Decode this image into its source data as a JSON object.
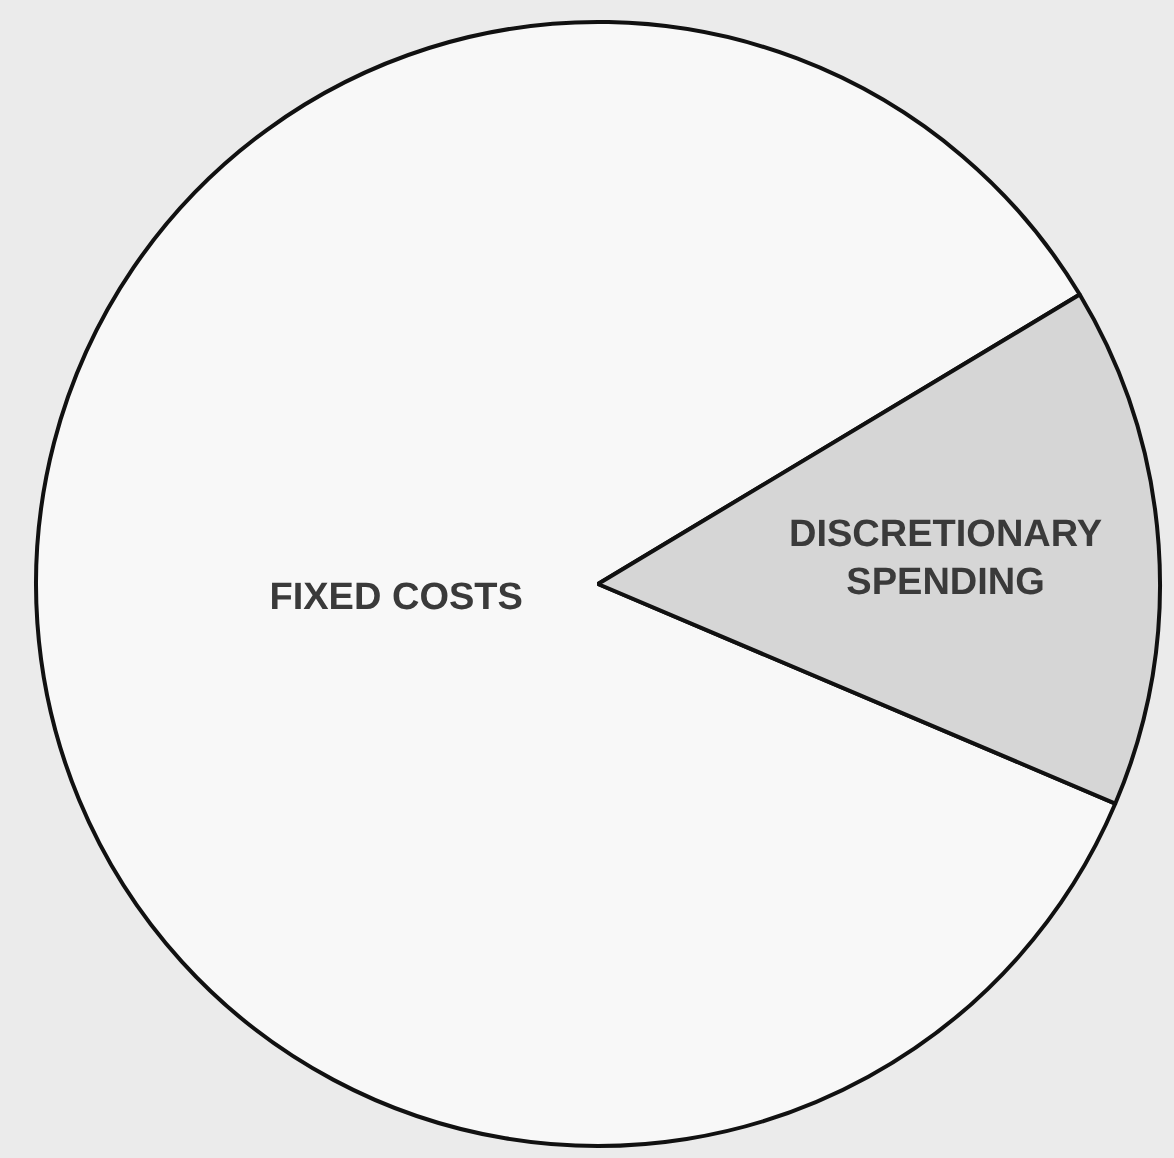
{
  "chart_data": {
    "type": "pie",
    "categories": [
      "FIXED COSTS",
      "DISCRETIONARY SPENDING"
    ],
    "values": [
      85,
      15
    ],
    "colors": [
      "#f8f8f8",
      "#d6d6d6"
    ],
    "legend": false
  }
}
